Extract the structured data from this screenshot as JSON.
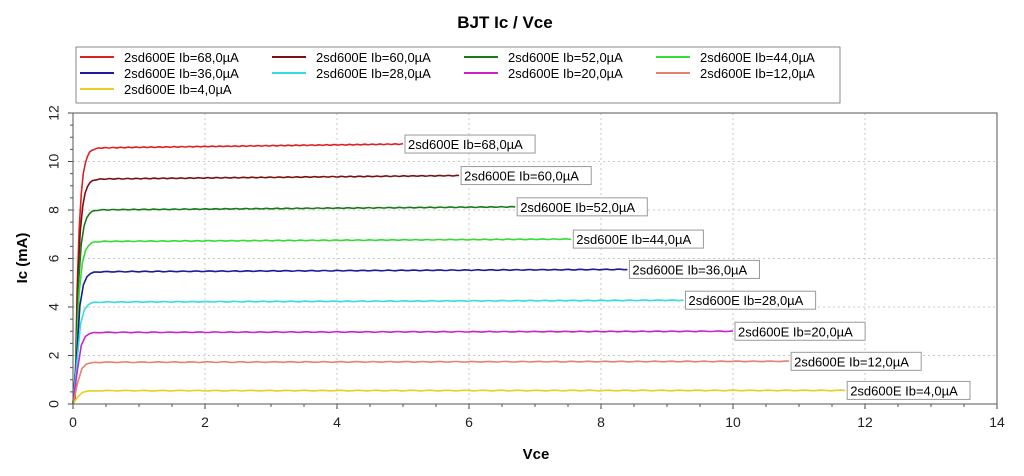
{
  "chart_data": {
    "type": "line",
    "title": "BJT Ic / Vce",
    "xlabel": "Vce",
    "ylabel": "Ic (mA)",
    "xlim": [
      0,
      14
    ],
    "ylim": [
      0,
      12
    ],
    "x_ticks": [
      "0",
      "2",
      "4",
      "6",
      "8",
      "10",
      "12",
      "14"
    ],
    "y_ticks": [
      "0",
      "2",
      "4",
      "6",
      "8",
      "10",
      "12"
    ],
    "grid": true,
    "legend_position": "top",
    "series": [
      {
        "name": "2sd600E Ib=68,0µA",
        "color": "#e02020",
        "sat": 10.55,
        "end": 10.72,
        "xmax": 5.0
      },
      {
        "name": "2sd600E Ib=60,0µA",
        "color": "#7a1010",
        "sat": 9.27,
        "end": 9.42,
        "xmax": 5.85
      },
      {
        "name": "2sd600E Ib=52,0µA",
        "color": "#1a7a1a",
        "sat": 8.0,
        "end": 8.13,
        "xmax": 6.7
      },
      {
        "name": "2sd600E Ib=44,0µA",
        "color": "#33dd33",
        "sat": 6.7,
        "end": 6.8,
        "xmax": 7.55
      },
      {
        "name": "2sd600E Ib=36,0µA",
        "color": "#1a1a9a",
        "sat": 5.45,
        "end": 5.55,
        "xmax": 8.4
      },
      {
        "name": "2sd600E Ib=28,0µA",
        "color": "#33dddd",
        "sat": 4.2,
        "end": 4.28,
        "xmax": 9.25
      },
      {
        "name": "2sd600E Ib=20,0µA",
        "color": "#cc22cc",
        "sat": 2.95,
        "end": 3.0,
        "xmax": 10.0
      },
      {
        "name": "2sd600E Ib=12,0µA",
        "color": "#e88070",
        "sat": 1.72,
        "end": 1.76,
        "xmax": 10.85
      },
      {
        "name": "2sd600E Ib=4,0µA",
        "color": "#e8d020",
        "sat": 0.55,
        "end": 0.56,
        "xmax": 11.7
      }
    ]
  }
}
